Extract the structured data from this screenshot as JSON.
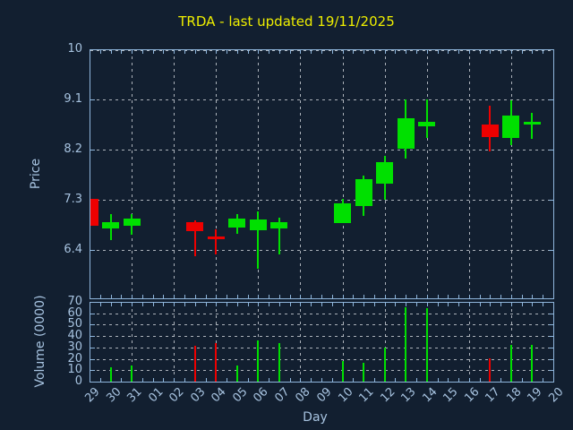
{
  "title": "TRDA - last updated 19/11/2025",
  "colors": {
    "background": "#121f30",
    "axis": "#8fb6dc",
    "tick_text": "#a7c3e0",
    "grid": "#c7ccd3",
    "title": "#eeee00",
    "up": "#00e000",
    "down": "#ee0000"
  },
  "axes": {
    "price_label": "Price",
    "volume_label": "Volume (0000)",
    "x_label": "Day"
  },
  "chart_data": [
    {
      "type": "candlestick",
      "panel": "price",
      "title": "TRDA - last updated 19/11/2025",
      "ylabel": "Price",
      "yticks": [
        "10",
        "9.1",
        "8.2",
        "7.3",
        "6.4"
      ],
      "ylim": [
        5.53,
        10
      ],
      "x_categories": [
        "29",
        "30",
        "31",
        "01",
        "02",
        "03",
        "04",
        "05",
        "06",
        "07",
        "08",
        "09",
        "10",
        "11",
        "12",
        "13",
        "14",
        "15",
        "16",
        "17",
        "18",
        "19",
        "20"
      ],
      "grid": {
        "style": "dashed",
        "horizontal": "every price tick",
        "vertical": "every 2nd day",
        "legend": "none"
      },
      "points": [
        {
          "day": "29",
          "open": 7.33,
          "high": 7.33,
          "low": 6.85,
          "close": 6.85,
          "direction": "down"
        },
        {
          "day": "30",
          "open": 6.8,
          "high": 7.05,
          "low": 6.59,
          "close": 6.91,
          "direction": "up"
        },
        {
          "day": "31",
          "open": 6.85,
          "high": 7.05,
          "low": 6.68,
          "close": 6.97,
          "direction": "up"
        },
        {
          "day": "03",
          "open": 6.91,
          "high": 6.95,
          "low": 6.3,
          "close": 6.76,
          "direction": "down"
        },
        {
          "day": "04",
          "open": 6.64,
          "high": 6.78,
          "low": 6.33,
          "close": 6.6,
          "direction": "down"
        },
        {
          "day": "05",
          "open": 6.81,
          "high": 7.06,
          "low": 6.7,
          "close": 6.97,
          "direction": "up"
        },
        {
          "day": "06",
          "open": 6.77,
          "high": 7.1,
          "low": 6.08,
          "close": 6.96,
          "direction": "up"
        },
        {
          "day": "07",
          "open": 6.8,
          "high": 7.0,
          "low": 6.33,
          "close": 6.92,
          "direction": "up"
        },
        {
          "day": "10",
          "open": 6.89,
          "high": 7.33,
          "low": 6.89,
          "close": 7.25,
          "direction": "up"
        },
        {
          "day": "11",
          "open": 7.21,
          "high": 7.75,
          "low": 7.02,
          "close": 7.68,
          "direction": "up"
        },
        {
          "day": "12",
          "open": 7.61,
          "high": 8.1,
          "low": 7.31,
          "close": 7.99,
          "direction": "up"
        },
        {
          "day": "13",
          "open": 8.23,
          "high": 9.11,
          "low": 8.05,
          "close": 8.77,
          "direction": "up"
        },
        {
          "day": "14",
          "open": 8.63,
          "high": 9.12,
          "low": 8.42,
          "close": 8.72,
          "direction": "up"
        },
        {
          "day": "17",
          "open": 8.66,
          "high": 9.01,
          "low": 8.18,
          "close": 8.44,
          "direction": "down"
        },
        {
          "day": "18",
          "open": 8.43,
          "high": 9.1,
          "low": 8.29,
          "close": 8.82,
          "direction": "up"
        },
        {
          "day": "19",
          "open": 8.67,
          "high": 8.88,
          "low": 8.4,
          "close": 8.7,
          "direction": "up"
        }
      ]
    },
    {
      "type": "bar",
      "panel": "volume",
      "ylabel": "Volume (0000)",
      "xlabel": "Day",
      "yticks": [
        "70",
        "60",
        "50",
        "40",
        "30",
        "20",
        "10",
        "0"
      ],
      "ylim": [
        0,
        70
      ],
      "x_categories": [
        "29",
        "30",
        "31",
        "01",
        "02",
        "03",
        "04",
        "05",
        "06",
        "07",
        "08",
        "09",
        "10",
        "11",
        "12",
        "13",
        "14",
        "15",
        "16",
        "17",
        "18",
        "19",
        "20"
      ],
      "bars": [
        {
          "day": "30",
          "value": 13,
          "direction": "up"
        },
        {
          "day": "31",
          "value": 15,
          "direction": "up"
        },
        {
          "day": "03",
          "value": 32,
          "direction": "down"
        },
        {
          "day": "04",
          "value": 35,
          "direction": "down"
        },
        {
          "day": "05",
          "value": 15,
          "direction": "up"
        },
        {
          "day": "06",
          "value": 37,
          "direction": "up"
        },
        {
          "day": "07",
          "value": 35,
          "direction": "up"
        },
        {
          "day": "10",
          "value": 19,
          "direction": "up"
        },
        {
          "day": "11",
          "value": 17,
          "direction": "up"
        },
        {
          "day": "12",
          "value": 31,
          "direction": "up"
        },
        {
          "day": "13",
          "value": 66,
          "direction": "up"
        },
        {
          "day": "14",
          "value": 65,
          "direction": "up"
        },
        {
          "day": "17",
          "value": 21,
          "direction": "down"
        },
        {
          "day": "18",
          "value": 33,
          "direction": "up"
        },
        {
          "day": "19",
          "value": 33,
          "direction": "up"
        }
      ]
    }
  ]
}
